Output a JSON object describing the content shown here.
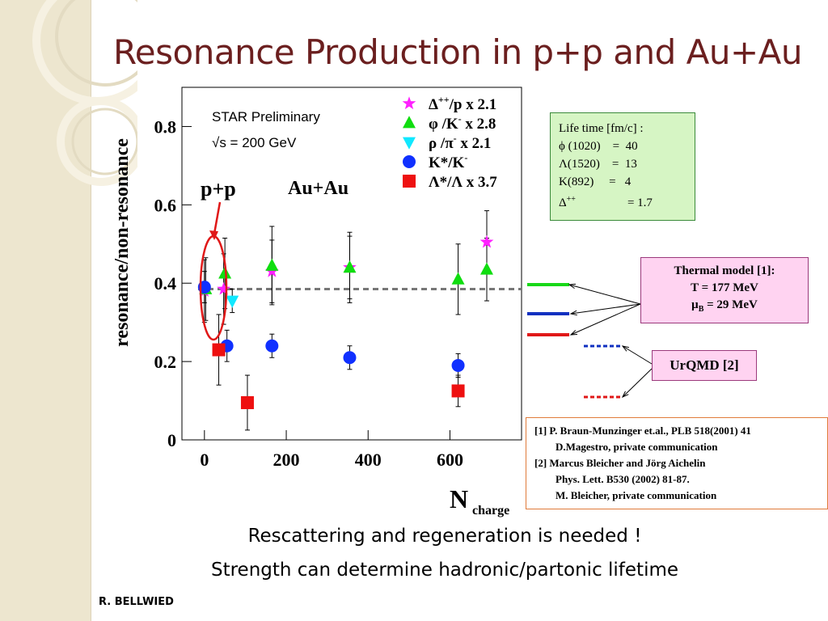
{
  "slide": {
    "title": "Resonance Production in p+p and Au+Au",
    "caption_line1": "Rescattering and regeneration is needed !",
    "caption_line2": "Strength can determine hadronic/partonic lifetime",
    "author": "R. BELLWIED"
  },
  "colors": {
    "title": "#6b1f1f",
    "magenta": "#ff20ff",
    "green": "#10dd10",
    "cyan": "#10e8ff",
    "blue": "#1030ff",
    "red": "#ee1010",
    "thermal_green": "#18d818",
    "thermal_blue": "#1030c0",
    "thermal_red": "#e01818",
    "fit_line": "#777777"
  },
  "chart_data": {
    "type": "scatter",
    "annotation": "STAR Preliminary",
    "energy_label": "√s = 200 GeV",
    "region_labels": [
      "p+p",
      "Au+Au"
    ],
    "xlabel": "N",
    "xlabel_sub": "charge",
    "ylabel": "resonance/non-resonance",
    "xlim": [
      -55,
      775
    ],
    "ylim": [
      0,
      0.9
    ],
    "x_ticks": [
      0,
      200,
      400,
      600
    ],
    "y_ticks": [
      0,
      0.2,
      0.4,
      0.6,
      0.8
    ],
    "x_tick_labels": [
      "0",
      "200",
      "400",
      "600"
    ],
    "y_tick_labels": [
      "0",
      "0.2",
      "0.4",
      "0.6",
      "0.8"
    ],
    "dashed_reference_y": 0.385,
    "series": [
      {
        "name": "Δ++/p x 2.1",
        "marker": "star",
        "color_key": "magenta",
        "legend_base": "Δ",
        "legend_sup": "++",
        "legend_rest": "/p  x 2.1",
        "points": [
          {
            "x": 0,
            "y": 0.38,
            "err": 0.08
          },
          {
            "x": 47,
            "y": 0.385,
            "err": 0.09
          },
          {
            "x": 165,
            "y": 0.43,
            "err": 0.08
          },
          {
            "x": 355,
            "y": 0.44,
            "err": 0.08
          },
          {
            "x": 690,
            "y": 0.505,
            "err": 0.08
          }
        ]
      },
      {
        "name": "φ /K- x 2.8",
        "marker": "triangle-up",
        "color_key": "green",
        "legend_base": "φ /K",
        "legend_sup": "-",
        "legend_rest": "  x 2.8",
        "points": [
          {
            "x": 3,
            "y": 0.385,
            "err": 0.08
          },
          {
            "x": 50,
            "y": 0.425,
            "err": 0.09
          },
          {
            "x": 165,
            "y": 0.445,
            "err": 0.1
          },
          {
            "x": 355,
            "y": 0.44,
            "err": 0.09
          },
          {
            "x": 620,
            "y": 0.41,
            "err": 0.09
          },
          {
            "x": 690,
            "y": 0.435,
            "err": 0.08
          }
        ]
      },
      {
        "name": "ρ /π- x 2.1",
        "marker": "triangle-down",
        "color_key": "cyan",
        "legend_base": "ρ /π",
        "legend_sup": "-",
        "legend_rest": "  x 2.1",
        "points": [
          {
            "x": 68,
            "y": 0.355,
            "err": 0.03
          }
        ]
      },
      {
        "name": "K*/K-",
        "marker": "circle",
        "color_key": "blue",
        "legend_base": "K*/K",
        "legend_sup": "-",
        "legend_rest": "",
        "points": [
          {
            "x": 0,
            "y": 0.39,
            "err": 0.04
          },
          {
            "x": 55,
            "y": 0.24,
            "err": 0.04
          },
          {
            "x": 165,
            "y": 0.24,
            "err": 0.03
          },
          {
            "x": 355,
            "y": 0.21,
            "err": 0.03
          },
          {
            "x": 620,
            "y": 0.19,
            "err": 0.03
          }
        ]
      },
      {
        "name": "Λ*/Λ x 3.7",
        "marker": "square",
        "color_key": "red",
        "legend_base": "Λ*/Λ",
        "legend_sup": "",
        "legend_rest": "  x 3.7",
        "points": [
          {
            "x": 35,
            "y": 0.23,
            "err": 0.09
          },
          {
            "x": 105,
            "y": 0.095,
            "err": 0.07
          },
          {
            "x": 620,
            "y": 0.125,
            "err": 0.04
          }
        ]
      }
    ]
  },
  "lifetime_box": {
    "title": "Life time [fm/c] :",
    "rows": [
      "ϕ (1020)    =  40",
      "Λ(1520)    =  13",
      "K(892)     =   4"
    ],
    "delta_base": "Δ",
    "delta_sup": "++",
    "delta_value": "= 1.7"
  },
  "thermal_box": {
    "line1": "Thermal model [1]:",
    "line2": "T = 177 MeV",
    "mu_symbol": "μ",
    "mu_sub": "B",
    "mu_value": " = 29 MeV"
  },
  "urqmd_box": {
    "label": "UrQMD [2]"
  },
  "references": {
    "ref1": "[1] P. Braun-Munzinger et.al., PLB 518(2001) 41",
    "ref1b": "D.Magestro, private communication",
    "ref2": "[2] Marcus Bleicher and Jörg Aichelin",
    "ref2b": "Phys. Lett. B530 (2002) 81-87.",
    "ref2c": "M. Bleicher, private communication"
  }
}
